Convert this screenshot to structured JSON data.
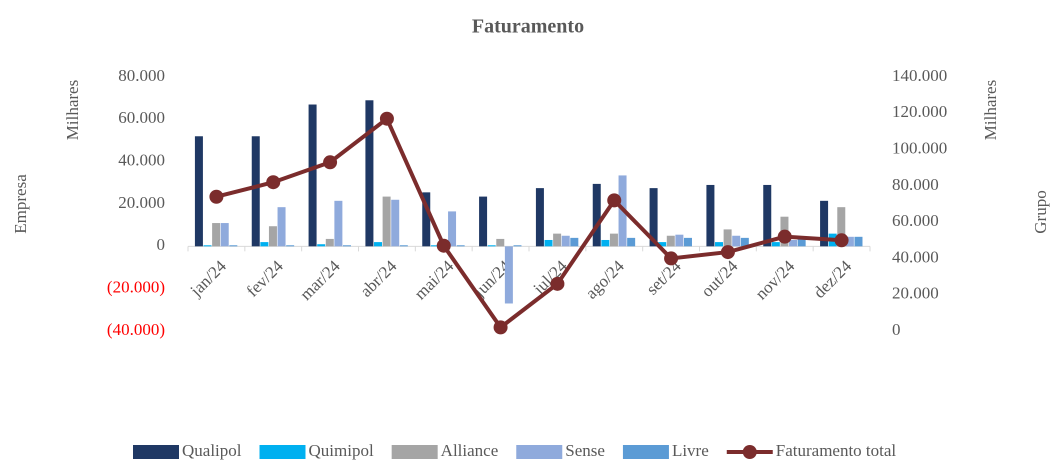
{
  "chart_data": {
    "type": "bar-line",
    "title": "Faturamento",
    "y_label": "Empresa",
    "y_unit": "Milhares",
    "y2_label": "Grupo",
    "y2_unit": "Milhares",
    "categories": [
      "jan/24",
      "fev/24",
      "mar/24",
      "abr/24",
      "mai/24",
      "jun/24",
      "jul/24",
      "ago/24",
      "set/24",
      "out/24",
      "nov/24",
      "dez/24"
    ],
    "series": [
      {
        "name": "Qualipol",
        "color": "#1f3864",
        "values": [
          52000,
          52000,
          67000,
          69000,
          25500,
          23500,
          27500,
          29500,
          27500,
          29000,
          29000,
          21500
        ]
      },
      {
        "name": "Quimipol",
        "color": "#00b0f0",
        "values": [
          500,
          2000,
          1000,
          2000,
          500,
          500,
          3000,
          3000,
          2000,
          2000,
          2000,
          6000
        ]
      },
      {
        "name": "Alliance",
        "color": "#a5a5a5",
        "values": [
          11000,
          9500,
          3500,
          23500,
          500,
          3500,
          6000,
          6000,
          5000,
          8000,
          14000,
          18500
        ]
      },
      {
        "name": "Sense",
        "color": "#8faadc",
        "values": [
          11000,
          18500,
          21500,
          22000,
          16500,
          -27000,
          5000,
          33500,
          5500,
          5000,
          3000,
          4500
        ]
      },
      {
        "name": "Livre",
        "color": "#5b9bd5",
        "values": [
          500,
          500,
          500,
          500,
          500,
          500,
          4000,
          4000,
          4000,
          4000,
          3500,
          4500
        ]
      },
      {
        "name": "Faturamento total",
        "color": "#7b2c2c",
        "axis": "y2",
        "values": [
          74000,
          82000,
          93000,
          117000,
          47000,
          2000,
          26000,
          72000,
          40000,
          43500,
          52000,
          50000
        ]
      }
    ],
    "ylim": [
      -40000,
      80000
    ],
    "yticks": [
      {
        "value": -40000,
        "label": "(40.000)"
      },
      {
        "value": -20000,
        "label": "(20.000)"
      },
      0,
      {
        "value": 20000,
        "label": "20.000"
      },
      {
        "value": 40000,
        "label": "40.000"
      },
      {
        "value": 60000,
        "label": "60.000"
      },
      {
        "value": 80000,
        "label": "80.000"
      }
    ],
    "y2lim": [
      0,
      140000
    ],
    "y2ticks": [
      0,
      {
        "value": 20000,
        "label": "20.000"
      },
      {
        "value": 40000,
        "label": "40.000"
      },
      {
        "value": 60000,
        "label": "60.000"
      },
      {
        "value": 80000,
        "label": "80.000"
      },
      {
        "value": 100000,
        "label": "100.000"
      },
      {
        "value": 120000,
        "label": "120.000"
      },
      {
        "value": 140000,
        "label": "140.000"
      }
    ],
    "negative_tick_color": "#ff0000",
    "legend": "bottom"
  }
}
